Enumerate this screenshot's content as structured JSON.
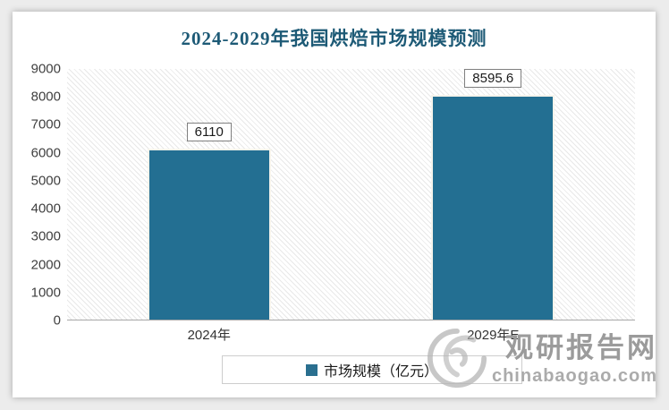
{
  "chart_data": {
    "type": "bar",
    "title": "2024-2029年我国烘焙市场规模预测",
    "categories": [
      "2024年",
      "2029年E"
    ],
    "series": [
      {
        "name": "市场规模（亿元）",
        "values": [
          6110,
          8595.6
        ]
      }
    ],
    "value_labels": [
      "6110",
      "8595.6"
    ],
    "ylim": [
      0,
      9000
    ],
    "yticks": [
      0,
      1000,
      2000,
      3000,
      4000,
      5000,
      6000,
      7000,
      8000,
      9000
    ],
    "xlabel": "",
    "ylabel": "",
    "grid": false,
    "legend_position": "bottom",
    "bar_color": "#236f92",
    "plot_hatch": "diagonal-light-gray"
  },
  "watermark": {
    "name": "观研报告网",
    "domain": "chinabaogao.com",
    "logo": "swirl-globe-icon"
  },
  "colors": {
    "title": "#1d5a76",
    "bar": "#236f92",
    "axis_text": "#3f3f3f",
    "baseline": "#a8a8a8",
    "card_bg": "#ffffff",
    "page_bg": "#ececec",
    "watermark_text": "#9b9b9b"
  }
}
